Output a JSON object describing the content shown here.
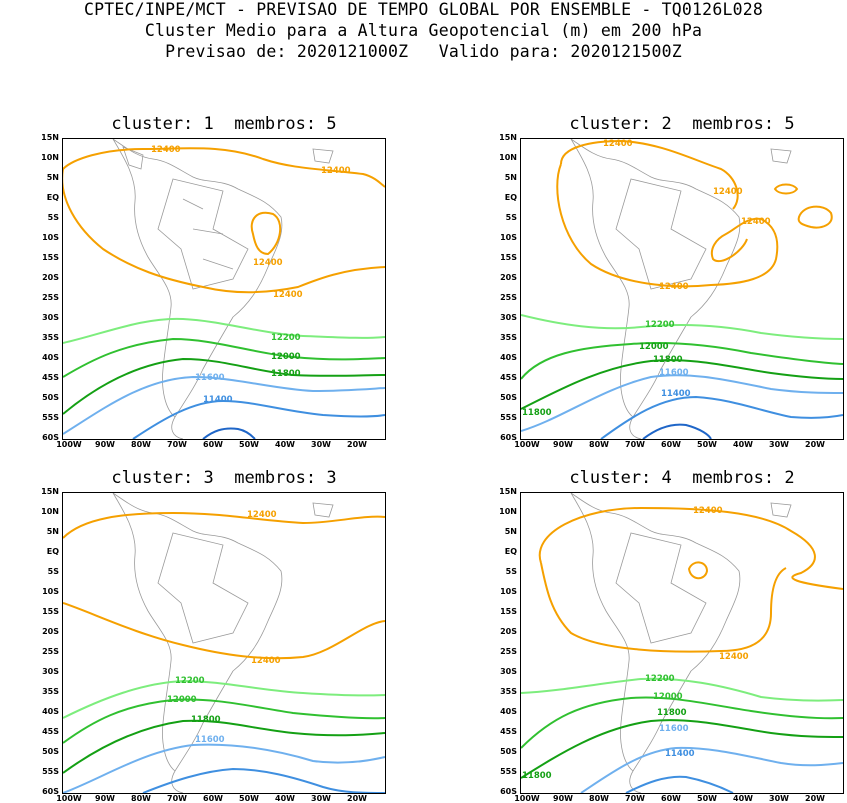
{
  "header": {
    "line1": "CPTEC/INPE/MCT - PREVISAO DE TEMPO GLOBAL POR ENSEMBLE - TQ0126L028",
    "line2": "Cluster Medio para a Altura Geopotencial (m) em 200 hPa",
    "line3": "Previsao de: 2020121000Z   Valido para: 2020121500Z"
  },
  "lat_ticks": [
    "15N",
    "10N",
    "5N",
    "EQ",
    "5S",
    "10S",
    "15S",
    "20S",
    "25S",
    "30S",
    "35S",
    "40S",
    "45S",
    "50S",
    "55S",
    "60S"
  ],
  "lon_ticks": [
    "100W",
    "90W",
    "80W",
    "70W",
    "60W",
    "50W",
    "40W",
    "30W",
    "20W"
  ],
  "colors": {
    "c12400": "#f5a000",
    "c12200": "#7ded7d",
    "c12000": "#30c030",
    "c11800": "#14a014",
    "c11600": "#6fb0ee",
    "c11400": "#3f8fe0",
    "c11200": "#1f66c8",
    "coast": "#9a9a9a"
  },
  "panels": [
    {
      "title": "cluster: 1  membros: 5",
      "labels": {
        "a": "12400",
        "b": "12400",
        "c": "12400",
        "d": "12400",
        "e": "12200",
        "f": "12000",
        "g": "11800",
        "h": "11600",
        "i": "11400"
      }
    },
    {
      "title": "cluster: 2  membros: 5",
      "labels": {
        "a": "12400",
        "b": "12400",
        "c": "12400",
        "d": "12400",
        "e": "12200",
        "f": "12000",
        "g": "11800",
        "h": "11600",
        "i": "11400",
        "j": "11800"
      }
    },
    {
      "title": "cluster: 3  membros: 3",
      "labels": {
        "a": "12400",
        "d": "12400",
        "e": "12200",
        "f": "12000",
        "g": "11800",
        "h": "11600"
      }
    },
    {
      "title": "cluster: 4  membros: 2",
      "labels": {
        "a": "12400",
        "d": "12400",
        "e": "12200",
        "f": "12000",
        "g": "11800",
        "h": "11600",
        "i": "11400",
        "j": "11800"
      }
    }
  ]
}
